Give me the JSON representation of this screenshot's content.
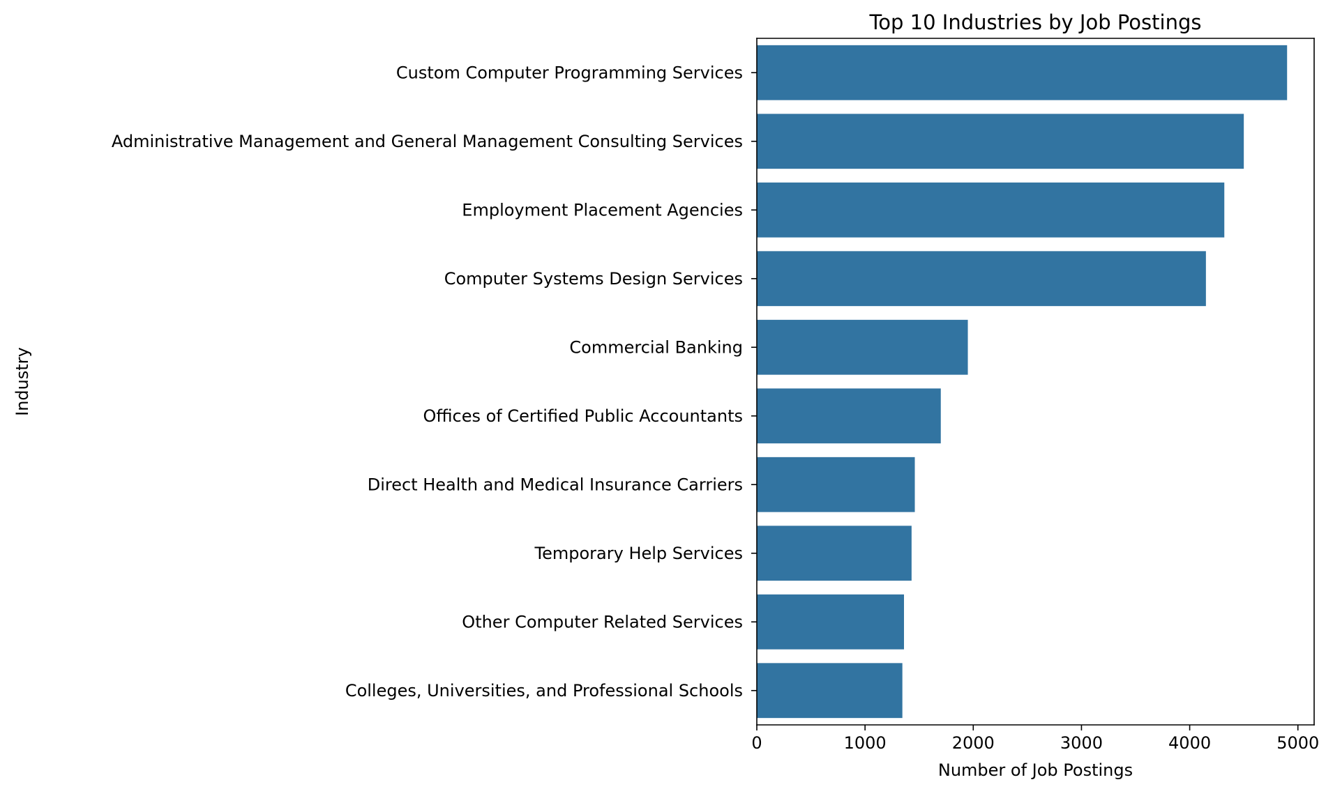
{
  "chart_data": {
    "type": "bar",
    "orientation": "horizontal",
    "title": "Top 10 Industries by Job Postings",
    "xlabel": "Number of Job Postings",
    "ylabel": "Industry",
    "categories": [
      "Custom Computer Programming Services",
      "Administrative Management and General Management Consulting Services",
      "Employment Placement Agencies",
      "Computer Systems Design Services",
      "Commercial Banking",
      "Offices of Certified Public Accountants",
      "Direct Health and Medical Insurance Carriers",
      "Temporary Help Services",
      "Other Computer Related Services",
      "Colleges, Universities, and Professional Schools"
    ],
    "values": [
      4900,
      4500,
      4320,
      4150,
      1950,
      1700,
      1460,
      1430,
      1360,
      1345
    ],
    "xlim": [
      0,
      5150
    ],
    "xticks": [
      "0",
      "1000",
      "2000",
      "3000",
      "4000",
      "5000"
    ],
    "grid": false,
    "legend": "none",
    "bar_color": "#3274a1"
  }
}
